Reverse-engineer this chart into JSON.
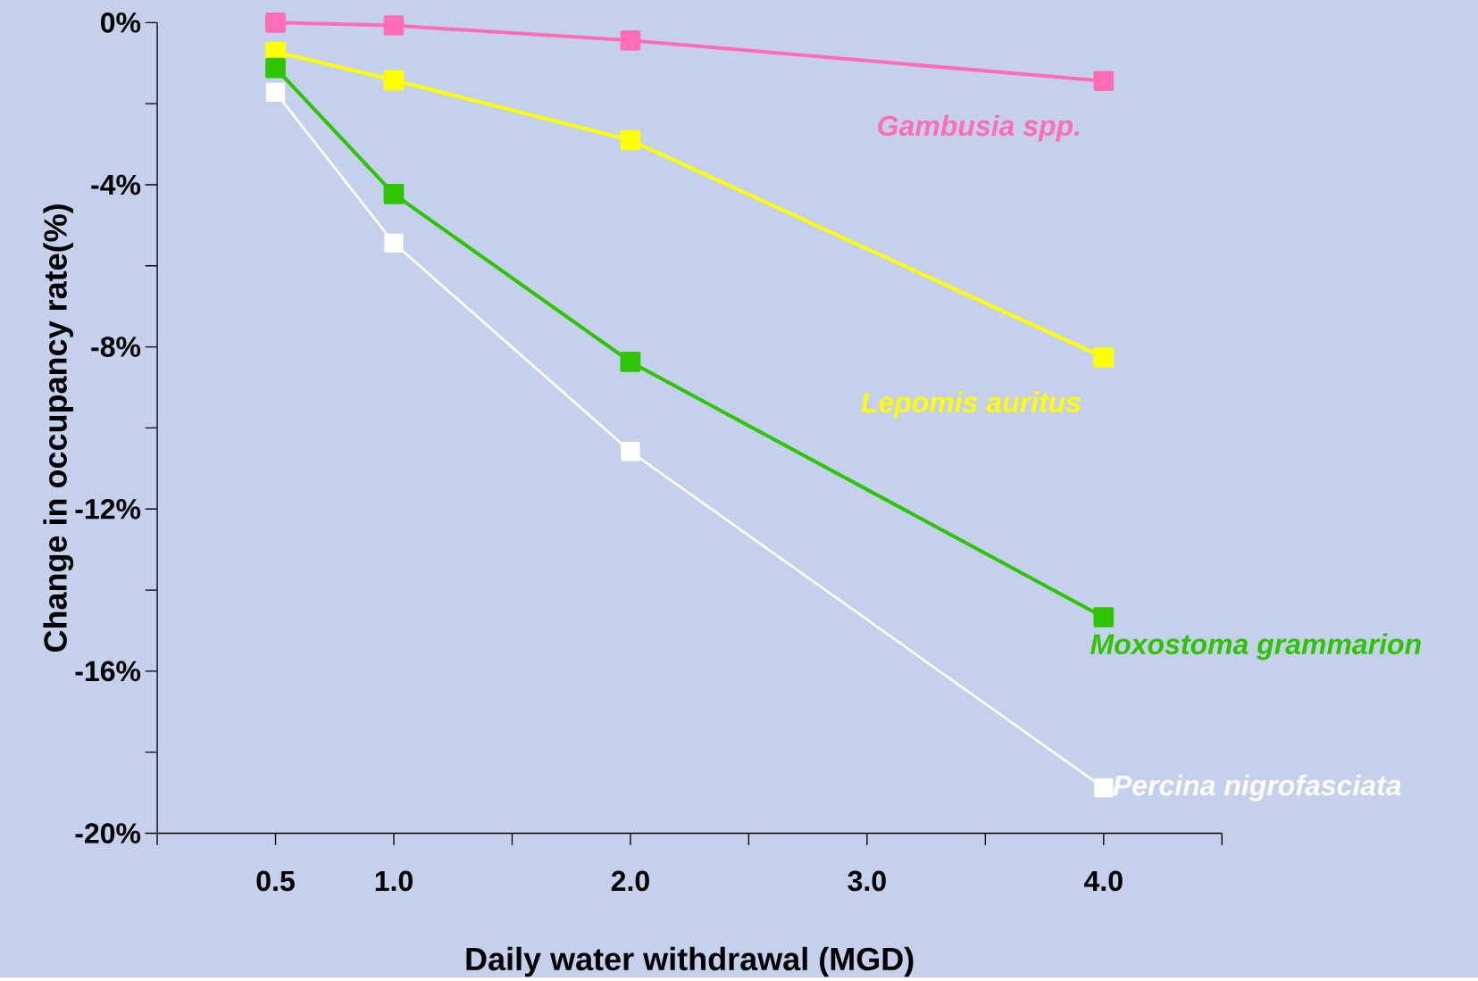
{
  "chart_data": {
    "type": "line",
    "xlabel": "Daily water withdrawal (MGD)",
    "ylabel": "Change in occupancy rate(%)",
    "x": [
      0.5,
      1.0,
      2.0,
      4.0
    ],
    "series": [
      {
        "name": "*Gambusia spp.*",
        "color": "#ff6eb4",
        "values": [
          0,
          -0.07,
          -0.44,
          -1.44
        ]
      },
      {
        "name": "*Lepomis auritus*",
        "color": "#ffff00",
        "values": [
          -0.72,
          -1.42,
          -2.9,
          -8.26
        ]
      },
      {
        "name": "*Moxostoma grammarion*",
        "color": "#2ec400",
        "values": [
          -1.12,
          -4.23,
          -8.37,
          -14.67
        ]
      },
      {
        "name": "*Percina nigrofasciata*",
        "color": "#ffffff",
        "values": [
          -1.72,
          -5.44,
          -10.58,
          -18.88
        ]
      }
    ],
    "xlim": [
      0,
      4.5
    ],
    "xticks": [
      {
        "value": 0,
        "label": null
      },
      {
        "value": 0.5,
        "label": "0.5"
      },
      {
        "value": 1.0,
        "label": "1.0"
      },
      {
        "value": 1.5,
        "label": null
      },
      {
        "value": 2.0,
        "label": "2.0"
      },
      {
        "value": 2.5,
        "label": null
      },
      {
        "value": 3.0,
        "label": "3.0"
      },
      {
        "value": 3.5,
        "label": null
      },
      {
        "value": 4.0,
        "label": "4.0"
      },
      {
        "value": 4.5,
        "label": null
      }
    ],
    "ylim": [
      -20,
      0
    ],
    "yticks": [
      {
        "value": -20,
        "label": "-20%"
      },
      {
        "value": -18,
        "label": null
      },
      {
        "value": -16,
        "label": "-16%"
      },
      {
        "value": -14,
        "label": null
      },
      {
        "value": -12,
        "label": "-12%"
      },
      {
        "value": -10,
        "label": null
      },
      {
        "value": -8,
        "label": "-8%"
      },
      {
        "value": -6,
        "label": null
      },
      {
        "value": -4,
        "label": "-4%"
      },
      {
        "value": -2,
        "label": null
      },
      {
        "value": 0,
        "label": "0%"
      }
    ],
    "marker": "square",
    "grid": false
  }
}
